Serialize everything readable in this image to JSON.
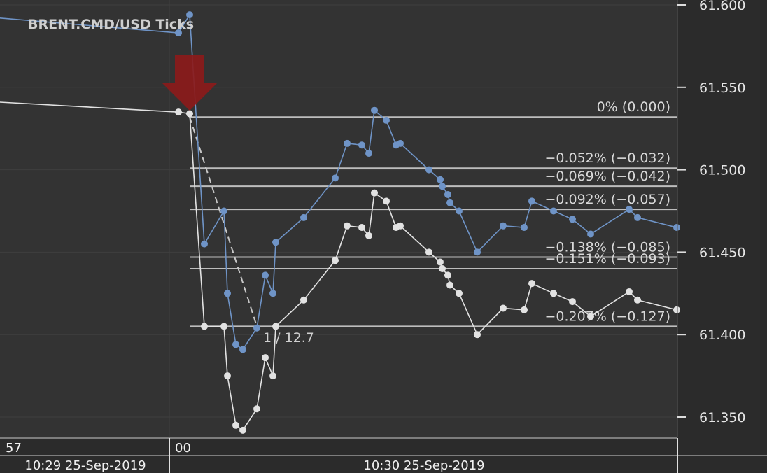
{
  "chart_data": {
    "type": "line",
    "title": "BRENT.CMD/USD  Ticks",
    "ylim": [
      61.333,
      61.605
    ],
    "y_ticks": [
      "61.600",
      "61.550",
      "61.500",
      "61.450",
      "61.400",
      "61.350"
    ],
    "x_ticks": [
      "57",
      "00"
    ],
    "x_date_labels": [
      "10:29 25-Sep-2019",
      "10:30 25-Sep-2019"
    ],
    "grid": true,
    "colors": {
      "background": "#333333",
      "ask": "#6f94c7",
      "bid": "#e2e2e2",
      "fib": "#bdbdbd",
      "arrow": "#8b1a1a",
      "grid": "#3f3f3f"
    },
    "series": [
      {
        "role": "ask",
        "points": [
          [
            0,
            61.592
          ],
          [
            255,
            61.583
          ],
          [
            271,
            61.594
          ],
          [
            292,
            61.455
          ],
          [
            320,
            61.475
          ],
          [
            325,
            61.425
          ],
          [
            337,
            61.394
          ],
          [
            347,
            61.391
          ],
          [
            367,
            61.404
          ],
          [
            379,
            61.436
          ],
          [
            390,
            61.425
          ],
          [
            394,
            61.456
          ],
          [
            434,
            61.471
          ],
          [
            479,
            61.495
          ],
          [
            496,
            61.516
          ],
          [
            517,
            61.515
          ],
          [
            527,
            61.51
          ],
          [
            535,
            61.536
          ],
          [
            552,
            61.53
          ],
          [
            566,
            61.515
          ],
          [
            572,
            61.516
          ],
          [
            613,
            61.5
          ],
          [
            629,
            61.494
          ],
          [
            632,
            61.49
          ],
          [
            640,
            61.485
          ],
          [
            643,
            61.48
          ],
          [
            656,
            61.475
          ],
          [
            682,
            61.45
          ],
          [
            719,
            61.466
          ],
          [
            749,
            61.465
          ],
          [
            760,
            61.481
          ],
          [
            791,
            61.475
          ],
          [
            818,
            61.47
          ],
          [
            844,
            61.461
          ],
          [
            899,
            61.476
          ],
          [
            911,
            61.471
          ],
          [
            967,
            61.465
          ]
        ]
      },
      {
        "role": "bid",
        "points": [
          [
            0,
            61.541
          ],
          [
            255,
            61.535
          ],
          [
            271,
            61.534
          ],
          [
            292,
            61.405
          ],
          [
            320,
            61.405
          ],
          [
            325,
            61.375
          ],
          [
            337,
            61.345
          ],
          [
            347,
            61.342
          ],
          [
            367,
            61.355
          ],
          [
            379,
            61.386
          ],
          [
            390,
            61.375
          ],
          [
            394,
            61.405
          ],
          [
            434,
            61.421
          ],
          [
            479,
            61.445
          ],
          [
            496,
            61.466
          ],
          [
            517,
            61.465
          ],
          [
            527,
            61.46
          ],
          [
            535,
            61.486
          ],
          [
            552,
            61.481
          ],
          [
            566,
            61.465
          ],
          [
            572,
            61.466
          ],
          [
            613,
            61.45
          ],
          [
            629,
            61.444
          ],
          [
            632,
            61.44
          ],
          [
            640,
            61.436
          ],
          [
            643,
            61.43
          ],
          [
            656,
            61.425
          ],
          [
            682,
            61.4
          ],
          [
            719,
            61.416
          ],
          [
            749,
            61.415
          ],
          [
            760,
            61.431
          ],
          [
            791,
            61.425
          ],
          [
            818,
            61.42
          ],
          [
            844,
            61.411
          ],
          [
            899,
            61.426
          ],
          [
            911,
            61.421
          ],
          [
            967,
            61.415
          ]
        ]
      }
    ],
    "fibonacci": {
      "anchor_high": 61.532,
      "anchor_low": 61.405,
      "levels": [
        {
          "value": 61.532,
          "label": "0% (0.000)"
        },
        {
          "value": 61.501,
          "label": "−0.052% (−0.032)"
        },
        {
          "value": 61.49,
          "label": "−0.069% (−0.042)"
        },
        {
          "value": 61.476,
          "label": "−0.092% (−0.057)"
        },
        {
          "value": 61.447,
          "label": "−0.138% (−0.085)"
        },
        {
          "value": 61.44,
          "label": "−0.151% (−0.093)"
        },
        {
          "value": 61.405,
          "label": "−0.207% (−0.127)"
        }
      ],
      "ratio_label": "1 / 12.7"
    },
    "arrow": {
      "icon": "down-arrow-icon",
      "at_y": 61.534
    }
  }
}
